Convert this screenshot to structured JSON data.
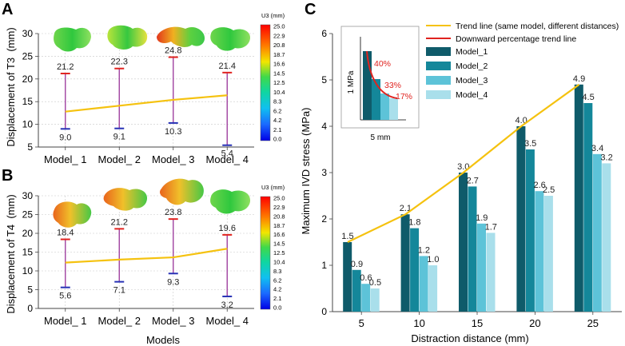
{
  "colors": {
    "trend": "#f5c20f",
    "red": "#e0231f",
    "errUpper": "#e0231f",
    "errLower": "#2731b5",
    "errMid": "#a040a0",
    "axis": "#444444",
    "grid": "#c8c8c8",
    "model1": "#0f5b6a",
    "model2": "#14879a",
    "model3": "#5dc3d8",
    "model4": "#a9dfeb"
  },
  "chart_data": [
    {
      "id": "A",
      "type": "line",
      "letter": "A",
      "ylabel": "Displacement of T3  (mm)",
      "ylim": [
        5,
        30
      ],
      "yticks": [
        "5",
        "10",
        "15",
        "20",
        "25",
        "30"
      ],
      "categories": [
        "Model_ 1",
        "Model_ 2",
        "Model_ 3",
        "Model_ 4"
      ],
      "mean": [
        12.8,
        14.1,
        15.4,
        16.4
      ],
      "max": [
        21.2,
        22.3,
        24.8,
        21.4
      ],
      "min": [
        9.0,
        9.1,
        10.3,
        5.4
      ],
      "max_labels": [
        "21.2",
        "22.3",
        "24.8",
        "21.4"
      ],
      "min_labels": [
        "9.0",
        "9.1",
        "10.3",
        "5.4"
      ],
      "colorbar": {
        "title": "U3 (mm)",
        "ticks": [
          "25.0",
          "22.9",
          "20.8",
          "18.7",
          "16.6",
          "14.5",
          "12.5",
          "10.4",
          "8.3",
          "6.2",
          "4.2",
          "2.1",
          "0.0"
        ]
      }
    },
    {
      "id": "B",
      "type": "line",
      "letter": "B",
      "ylabel": "Displacement of T4  (mm)",
      "xlabel": "Models",
      "ylim": [
        0,
        30
      ],
      "yticks": [
        "0",
        "5",
        "10",
        "15",
        "20",
        "25",
        "30"
      ],
      "categories": [
        "Model_ 1",
        "Model_ 2",
        "Model_ 3",
        "Model_ 4"
      ],
      "mean": [
        12.2,
        13.0,
        13.6,
        15.9
      ],
      "max": [
        18.4,
        21.2,
        23.8,
        19.6
      ],
      "min": [
        5.6,
        7.1,
        9.3,
        3.2
      ],
      "max_labels": [
        "18.4",
        "21.2",
        "23.8",
        "19.6"
      ],
      "min_labels": [
        "5.6",
        "7.1",
        "9.3",
        "3.2"
      ],
      "colorbar": {
        "title": "U3 (mm)",
        "ticks": [
          "25.0",
          "22.9",
          "20.8",
          "18.7",
          "16.6",
          "14.5",
          "12.5",
          "10.4",
          "8.3",
          "6.2",
          "4.2",
          "2.1",
          "0.0"
        ]
      }
    },
    {
      "id": "C",
      "type": "bar",
      "letter": "C",
      "xlabel": "Distraction distance (mm)",
      "ylabel": "Maximum IVD stress (MPa)",
      "ylim": [
        0,
        6
      ],
      "yticks": [
        "0",
        "1",
        "2",
        "3",
        "4",
        "5",
        "6"
      ],
      "categories": [
        "5",
        "10",
        "15",
        "20",
        "25"
      ],
      "series": [
        {
          "name": "Model_1",
          "values": [
            1.5,
            2.1,
            3.0,
            4.0,
            4.9
          ],
          "labels": [
            "1.5",
            "2.1",
            "3.0",
            "4.0",
            "4.9"
          ]
        },
        {
          "name": "Model_2",
          "values": [
            0.9,
            1.8,
            2.7,
            3.5,
            4.5
          ],
          "labels": [
            "0.9",
            "1.8",
            "2.7",
            "3.5",
            "4.5"
          ]
        },
        {
          "name": "Model_3",
          "values": [
            0.6,
            1.2,
            1.9,
            2.6,
            3.4
          ],
          "labels": [
            "0.6",
            "1.2",
            "1.9",
            "2.6",
            "3.4"
          ]
        },
        {
          "name": "Model_4",
          "values": [
            0.5,
            1.0,
            1.7,
            2.5,
            3.2
          ],
          "labels": [
            "0.5",
            "1.0",
            "1.7",
            "2.5",
            "3.2"
          ]
        }
      ],
      "trend": [
        1.5,
        2.1,
        3.0,
        4.0,
        4.9
      ],
      "legend": {
        "trend": "Trend line (same model, different distances)",
        "downward": "Downward percentage trend line",
        "models": [
          "Model_1",
          "Model_2",
          "Model_3",
          "Model_4"
        ]
      },
      "inset": {
        "ylabel": "1 MPa",
        "xlabel": "5 mm",
        "percentages": [
          "40%",
          "33%",
          "17%"
        ]
      }
    }
  ]
}
